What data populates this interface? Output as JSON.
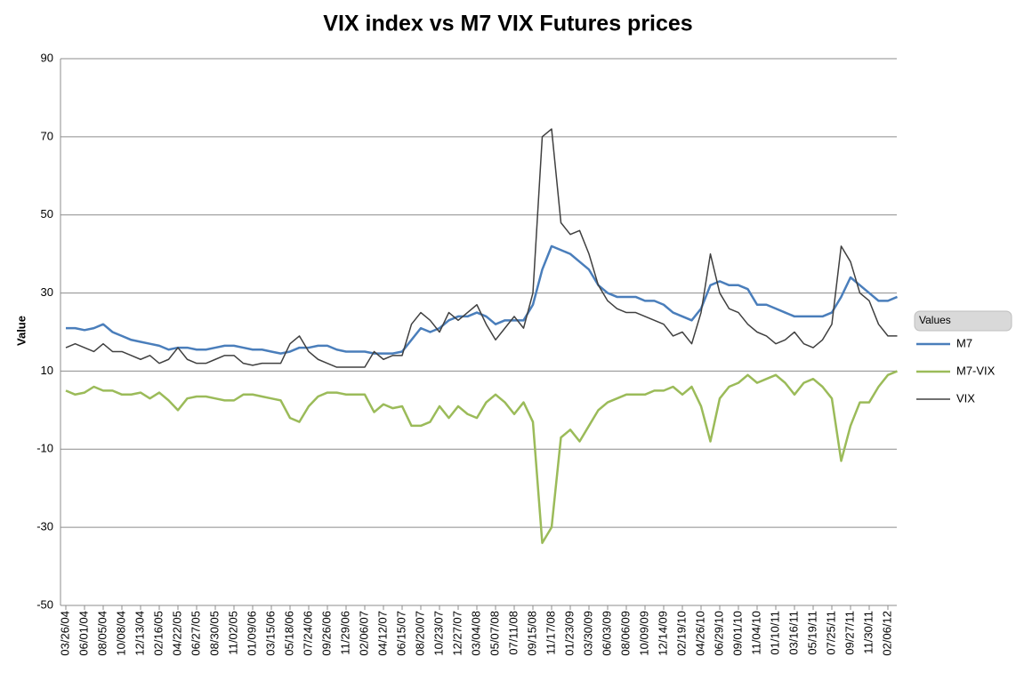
{
  "chart_data": {
    "type": "line",
    "title": "VIX index vs M7 VIX Futures prices",
    "y_label": "Value",
    "legend_title": "Values",
    "legend": "right",
    "grid": true,
    "ylim": [
      -50,
      90
    ],
    "yticks": [
      -50,
      -30,
      -10,
      10,
      30,
      50,
      70,
      90
    ],
    "categories": [
      "03/26/04",
      null,
      "06/01/04",
      null,
      "08/05/04",
      null,
      "10/08/04",
      null,
      "12/13/04",
      null,
      "02/16/05",
      null,
      "04/22/05",
      null,
      "06/27/05",
      null,
      "08/30/05",
      null,
      "11/02/05",
      null,
      "01/09/06",
      null,
      "03/15/06",
      null,
      "05/18/06",
      null,
      "07/24/06",
      null,
      "09/26/06",
      null,
      "11/29/06",
      null,
      "02/06/07",
      null,
      "04/12/07",
      null,
      "06/15/07",
      null,
      "08/20/07",
      null,
      "10/23/07",
      null,
      "12/27/07",
      null,
      "03/04/08",
      null,
      "05/07/08",
      null,
      "07/11/08",
      null,
      "09/15/08",
      null,
      "11/17/08",
      null,
      "01/23/09",
      null,
      "03/30/09",
      null,
      "06/03/09",
      null,
      "08/06/09",
      null,
      "10/09/09",
      null,
      "12/14/09",
      null,
      "02/19/10",
      null,
      "04/26/10",
      null,
      "06/29/10",
      null,
      "09/01/10",
      null,
      "11/04/10",
      null,
      "01/10/11",
      null,
      "03/16/11",
      null,
      "05/19/11",
      null,
      "07/25/11",
      null,
      "09/27/11",
      null,
      "11/30/11",
      null,
      "02/06/12",
      null
    ],
    "series": [
      {
        "name": "M7",
        "color": "#4a7ebb",
        "width": 2.5,
        "values": [
          21,
          21,
          20.5,
          21,
          22,
          20,
          19,
          18,
          17.5,
          17,
          16.5,
          15.5,
          16,
          16,
          15.5,
          15.5,
          16,
          16.5,
          16.5,
          16,
          15.5,
          15.5,
          15,
          14.5,
          15,
          16,
          16,
          16.5,
          16.5,
          15.5,
          15,
          15,
          15,
          14.5,
          14.5,
          14.5,
          15,
          18,
          21,
          20,
          21,
          23,
          24,
          24,
          25,
          24,
          22,
          23,
          23,
          23,
          27,
          36,
          42,
          41,
          40,
          38,
          36,
          32,
          30,
          29,
          29,
          29,
          28,
          28,
          27,
          25,
          24,
          23,
          26,
          32,
          33,
          32,
          32,
          31,
          27,
          27,
          26,
          25,
          24,
          24,
          24,
          24,
          25,
          29,
          34,
          32,
          30,
          28,
          28,
          29
        ]
      },
      {
        "name": "M7-VIX",
        "color": "#9bbb59",
        "width": 2.5,
        "values": [
          5,
          4,
          4.5,
          6,
          5,
          5,
          4,
          4,
          4.5,
          3,
          4.5,
          2.5,
          0,
          3,
          3.5,
          3.5,
          3,
          2.5,
          2.5,
          4,
          4,
          3.5,
          3,
          2.5,
          -2,
          -3,
          1,
          3.5,
          4.5,
          4.5,
          4,
          4,
          4,
          -0.5,
          1.5,
          0.5,
          1,
          -4,
          -4,
          -3,
          1,
          -2,
          1,
          -1,
          -2,
          2,
          4,
          2,
          -1,
          2,
          -3,
          -34,
          -30,
          -7,
          -5,
          -8,
          -4,
          0,
          2,
          3,
          4,
          4,
          4,
          5,
          5,
          6,
          4,
          6,
          1,
          -8,
          3,
          6,
          7,
          9,
          7,
          8,
          9,
          7,
          4,
          7,
          8,
          6,
          3,
          -13,
          -4,
          2,
          2,
          6,
          9,
          10
        ]
      },
      {
        "name": "VIX",
        "color": "#404040",
        "width": 1.5,
        "values": [
          16,
          17,
          16,
          15,
          17,
          15,
          15,
          14,
          13,
          14,
          12,
          13,
          16,
          13,
          12,
          12,
          13,
          14,
          14,
          12,
          11.5,
          12,
          12,
          12,
          17,
          19,
          15,
          13,
          12,
          11,
          11,
          11,
          11,
          15,
          13,
          14,
          14,
          22,
          25,
          23,
          20,
          25,
          23,
          25,
          27,
          22,
          18,
          21,
          24,
          21,
          30,
          70,
          72,
          48,
          45,
          46,
          40,
          32,
          28,
          26,
          25,
          25,
          24,
          23,
          22,
          19,
          20,
          17,
          25,
          40,
          30,
          26,
          25,
          22,
          20,
          19,
          17,
          18,
          20,
          17,
          16,
          18,
          22,
          42,
          38,
          30,
          28,
          22,
          19,
          19
        ]
      }
    ]
  }
}
